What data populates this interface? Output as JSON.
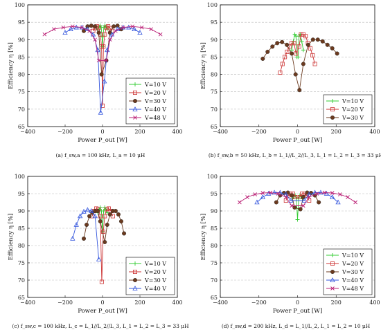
{
  "chart_data": [
    {
      "type": "scatter",
      "caption": "(a) f_sw,a = 100 kHz, L_a = 10 μH",
      "xlabel": "Power P_out [W]",
      "ylabel": "Efficiency η [%]",
      "xlim": [
        -400,
        400
      ],
      "ylim": [
        65,
        100
      ],
      "xticks": [
        "−400",
        "−200",
        "0",
        "200",
        "400"
      ],
      "yticks": [
        "65",
        "70",
        "75",
        "80",
        "85",
        "90",
        "95",
        "100"
      ],
      "grid": "horizontal-dashed",
      "legend": "bottom-right",
      "series": [
        {
          "name": "V=10 V",
          "color": "#33cc33",
          "marker": "plus",
          "x": [
            -25,
            -18,
            -12,
            -7,
            -3,
            0,
            3,
            7,
            12,
            18,
            25
          ],
          "y": [
            93,
            93.7,
            94,
            93.5,
            91,
            88,
            91,
            93.5,
            94,
            93.7,
            93
          ]
        },
        {
          "name": "V=20 V",
          "color": "#cc3333",
          "marker": "square",
          "x": [
            -50,
            -40,
            -30,
            -20,
            -12,
            -5,
            0,
            5,
            12,
            20,
            30,
            40,
            50
          ],
          "y": [
            92.5,
            93.3,
            93.8,
            93.5,
            91.5,
            88,
            71,
            88,
            91.5,
            93.5,
            93.8,
            93.3,
            92.5
          ]
        },
        {
          "name": "V=30 V",
          "color": "#6b3a1f",
          "marker": "circle",
          "x": [
            -100,
            -80,
            -60,
            -40,
            -20,
            -5,
            20,
            40,
            60,
            80,
            100
          ],
          "y": [
            92.5,
            93.8,
            94,
            93.8,
            92,
            80,
            84,
            92,
            93.8,
            94,
            93
          ]
        },
        {
          "name": "V=40 V",
          "color": "#3355dd",
          "marker": "triangle",
          "x": [
            -200,
            -170,
            -140,
            -110,
            -80,
            -50,
            -25,
            -10,
            10,
            25,
            50,
            80,
            110,
            140,
            170,
            200
          ],
          "y": [
            92,
            93,
            93.5,
            93.5,
            93,
            91.5,
            87,
            69,
            78,
            87,
            91.5,
            93,
            93.5,
            93.5,
            93,
            92
          ]
        },
        {
          "name": "V=48 V",
          "color": "#bb2277",
          "marker": "x",
          "x": [
            -310,
            -260,
            -210,
            -160,
            -110,
            -70,
            -40,
            -20,
            20,
            40,
            70,
            110,
            160,
            210,
            260,
            310
          ],
          "y": [
            91.5,
            93,
            93.5,
            93.8,
            93.5,
            92.5,
            90,
            84,
            84,
            90,
            92.5,
            93.5,
            93.8,
            93.5,
            93,
            91.5
          ]
        }
      ]
    },
    {
      "type": "scatter",
      "caption": "(b) f_sw,b = 50 kHz, L_b = L_1//L_2//L_3, L_1 = L_2 = L_3 = 33 μH",
      "xlabel": "Power P_out [W]",
      "ylabel": "Efficiency η [%]",
      "xlim": [
        -400,
        400
      ],
      "ylim": [
        65,
        100
      ],
      "xticks": [
        "−400",
        "−200",
        "0",
        "200",
        "400"
      ],
      "yticks": [
        "65",
        "70",
        "75",
        "80",
        "85",
        "90",
        "95",
        "100"
      ],
      "grid": "horizontal-dashed",
      "legend": "bottom-right",
      "series": [
        {
          "name": "V=10 V",
          "color": "#33cc33",
          "marker": "plus",
          "x": [
            -30,
            -22,
            -14,
            -8,
            -3,
            3,
            8,
            14,
            22,
            30
          ],
          "y": [
            87,
            89.5,
            91.5,
            91,
            85,
            85,
            91,
            91.5,
            89.5,
            87
          ]
        },
        {
          "name": "V=20 V",
          "color": "#cc3333",
          "marker": "square",
          "x": [
            -90,
            -78,
            -66,
            -54,
            -42,
            -30,
            -18,
            -8,
            8,
            18,
            30,
            42,
            54,
            66,
            78,
            90
          ],
          "y": [
            80.5,
            83,
            85,
            86.5,
            88,
            89,
            89,
            86,
            88,
            91.5,
            91.5,
            91,
            89,
            87.5,
            85.5,
            83
          ]
        },
        {
          "name": "V=30 V",
          "color": "#6b3a1f",
          "marker": "circle",
          "x": [
            -180,
            -155,
            -130,
            -105,
            -80,
            -55,
            -30,
            -10,
            10,
            30,
            55,
            80,
            105,
            130,
            155,
            180,
            205
          ],
          "y": [
            84.5,
            86.5,
            88,
            89,
            89.3,
            88.5,
            86,
            80,
            75.5,
            83,
            88.5,
            90,
            90,
            89.5,
            88.5,
            87.5,
            86
          ]
        }
      ]
    },
    {
      "type": "scatter",
      "caption": "(c) f_sw,c = 100 kHz, L_c = L_1//L_2//L_3, L_1 = L_2 = L_3 = 33 μH",
      "xlabel": "Power P_out [W]",
      "ylabel": "Efficiency η [%]",
      "xlim": [
        -400,
        400
      ],
      "ylim": [
        65,
        100
      ],
      "xticks": [
        "−400",
        "−200",
        "0",
        "200",
        "400"
      ],
      "yticks": [
        "65",
        "70",
        "75",
        "80",
        "85",
        "90",
        "95",
        "100"
      ],
      "grid": "horizontal-dashed",
      "legend": "bottom-right",
      "series": [
        {
          "name": "V=10 V",
          "color": "#33cc33",
          "marker": "plus",
          "x": [
            -25,
            -18,
            -12,
            -6,
            0,
            6,
            12,
            18,
            25
          ],
          "y": [
            89.5,
            90.5,
            91,
            90,
            84,
            90,
            91,
            90.5,
            89.5
          ]
        },
        {
          "name": "V=20 V",
          "color": "#cc3333",
          "marker": "square",
          "x": [
            -55,
            -44,
            -33,
            -22,
            -12,
            -4,
            4,
            12,
            22,
            33,
            44,
            55
          ],
          "y": [
            88.5,
            90,
            90.7,
            90.5,
            88.5,
            69.5,
            84,
            88.5,
            90.5,
            90.7,
            90,
            88.5
          ]
        },
        {
          "name": "V=30 V",
          "color": "#6b3a1f",
          "marker": "circle",
          "x": [
            -100,
            -85,
            -70,
            -55,
            -40,
            -25,
            -12,
            12,
            25,
            40,
            55,
            70,
            85,
            100,
            115
          ],
          "y": [
            82,
            86,
            88.5,
            89.5,
            90,
            90,
            87,
            81,
            86,
            89,
            90,
            90,
            89,
            87,
            83.5
          ]
        },
        {
          "name": "V=40 V",
          "color": "#3355dd",
          "marker": "triangle",
          "x": [
            -160,
            -140,
            -120,
            -100,
            -80,
            -60,
            -40,
            -20
          ],
          "y": [
            82,
            86,
            88.5,
            89.8,
            90.3,
            90,
            88.5,
            76
          ]
        }
      ]
    },
    {
      "type": "scatter",
      "caption": "(d) f_sw,d = 200 kHz, L_d = L_1//L_2, L_1 = L_2 = 10 μH",
      "xlabel": "Power P_out [W]",
      "ylabel": "Efficiency η [%]",
      "xlim": [
        -400,
        400
      ],
      "ylim": [
        65,
        100
      ],
      "xticks": [
        "−400",
        "−200",
        "0",
        "200",
        "400"
      ],
      "yticks": [
        "65",
        "70",
        "75",
        "80",
        "85",
        "90",
        "95",
        "100"
      ],
      "grid": "horizontal-dashed",
      "legend": "bottom-right",
      "series": [
        {
          "name": "V=10 V",
          "color": "#33cc33",
          "marker": "plus",
          "x": [
            -25,
            -18,
            -12,
            -6,
            0,
            6,
            12,
            18,
            25
          ],
          "y": [
            93.5,
            94.2,
            94.5,
            93.5,
            87.5,
            93.5,
            94.5,
            94.2,
            93.5
          ]
        },
        {
          "name": "V=20 V",
          "color": "#cc3333",
          "marker": "square",
          "x": [
            -60,
            -48,
            -36,
            -24,
            -12,
            12,
            24,
            36,
            48,
            60
          ],
          "y": [
            93,
            94.5,
            95,
            95,
            94,
            94,
            95,
            95,
            94.5,
            93
          ]
        },
        {
          "name": "V=30 V",
          "color": "#6b3a1f",
          "marker": "circle",
          "x": [
            -110,
            -90,
            -70,
            -50,
            -30,
            -15,
            15,
            30,
            50,
            70,
            90,
            110
          ],
          "y": [
            92.5,
            94.5,
            95.2,
            95.3,
            94.5,
            91,
            90.5,
            94,
            95.3,
            95.2,
            94.5,
            92.5
          ]
        },
        {
          "name": "V=40 V",
          "color": "#3355dd",
          "marker": "triangle",
          "x": [
            -210,
            -180,
            -150,
            -120,
            -90,
            -60,
            -35,
            35,
            60,
            90,
            120,
            150,
            180,
            210
          ],
          "y": [
            92.5,
            94,
            95,
            95.3,
            95.3,
            94.8,
            93,
            93,
            94.8,
            95.3,
            95.3,
            95,
            94,
            92.5
          ]
        },
        {
          "name": "V=48 V",
          "color": "#bb2277",
          "marker": "x",
          "x": [
            -300,
            -260,
            -220,
            -180,
            -140,
            -100,
            -60,
            -30,
            30,
            60,
            100,
            140,
            180,
            220,
            260,
            300
          ],
          "y": [
            92.5,
            94,
            94.8,
            95.2,
            95.3,
            95,
            94,
            91.5,
            91.5,
            94,
            95,
            95.3,
            95.2,
            94.8,
            94,
            92.5
          ]
        }
      ]
    }
  ]
}
